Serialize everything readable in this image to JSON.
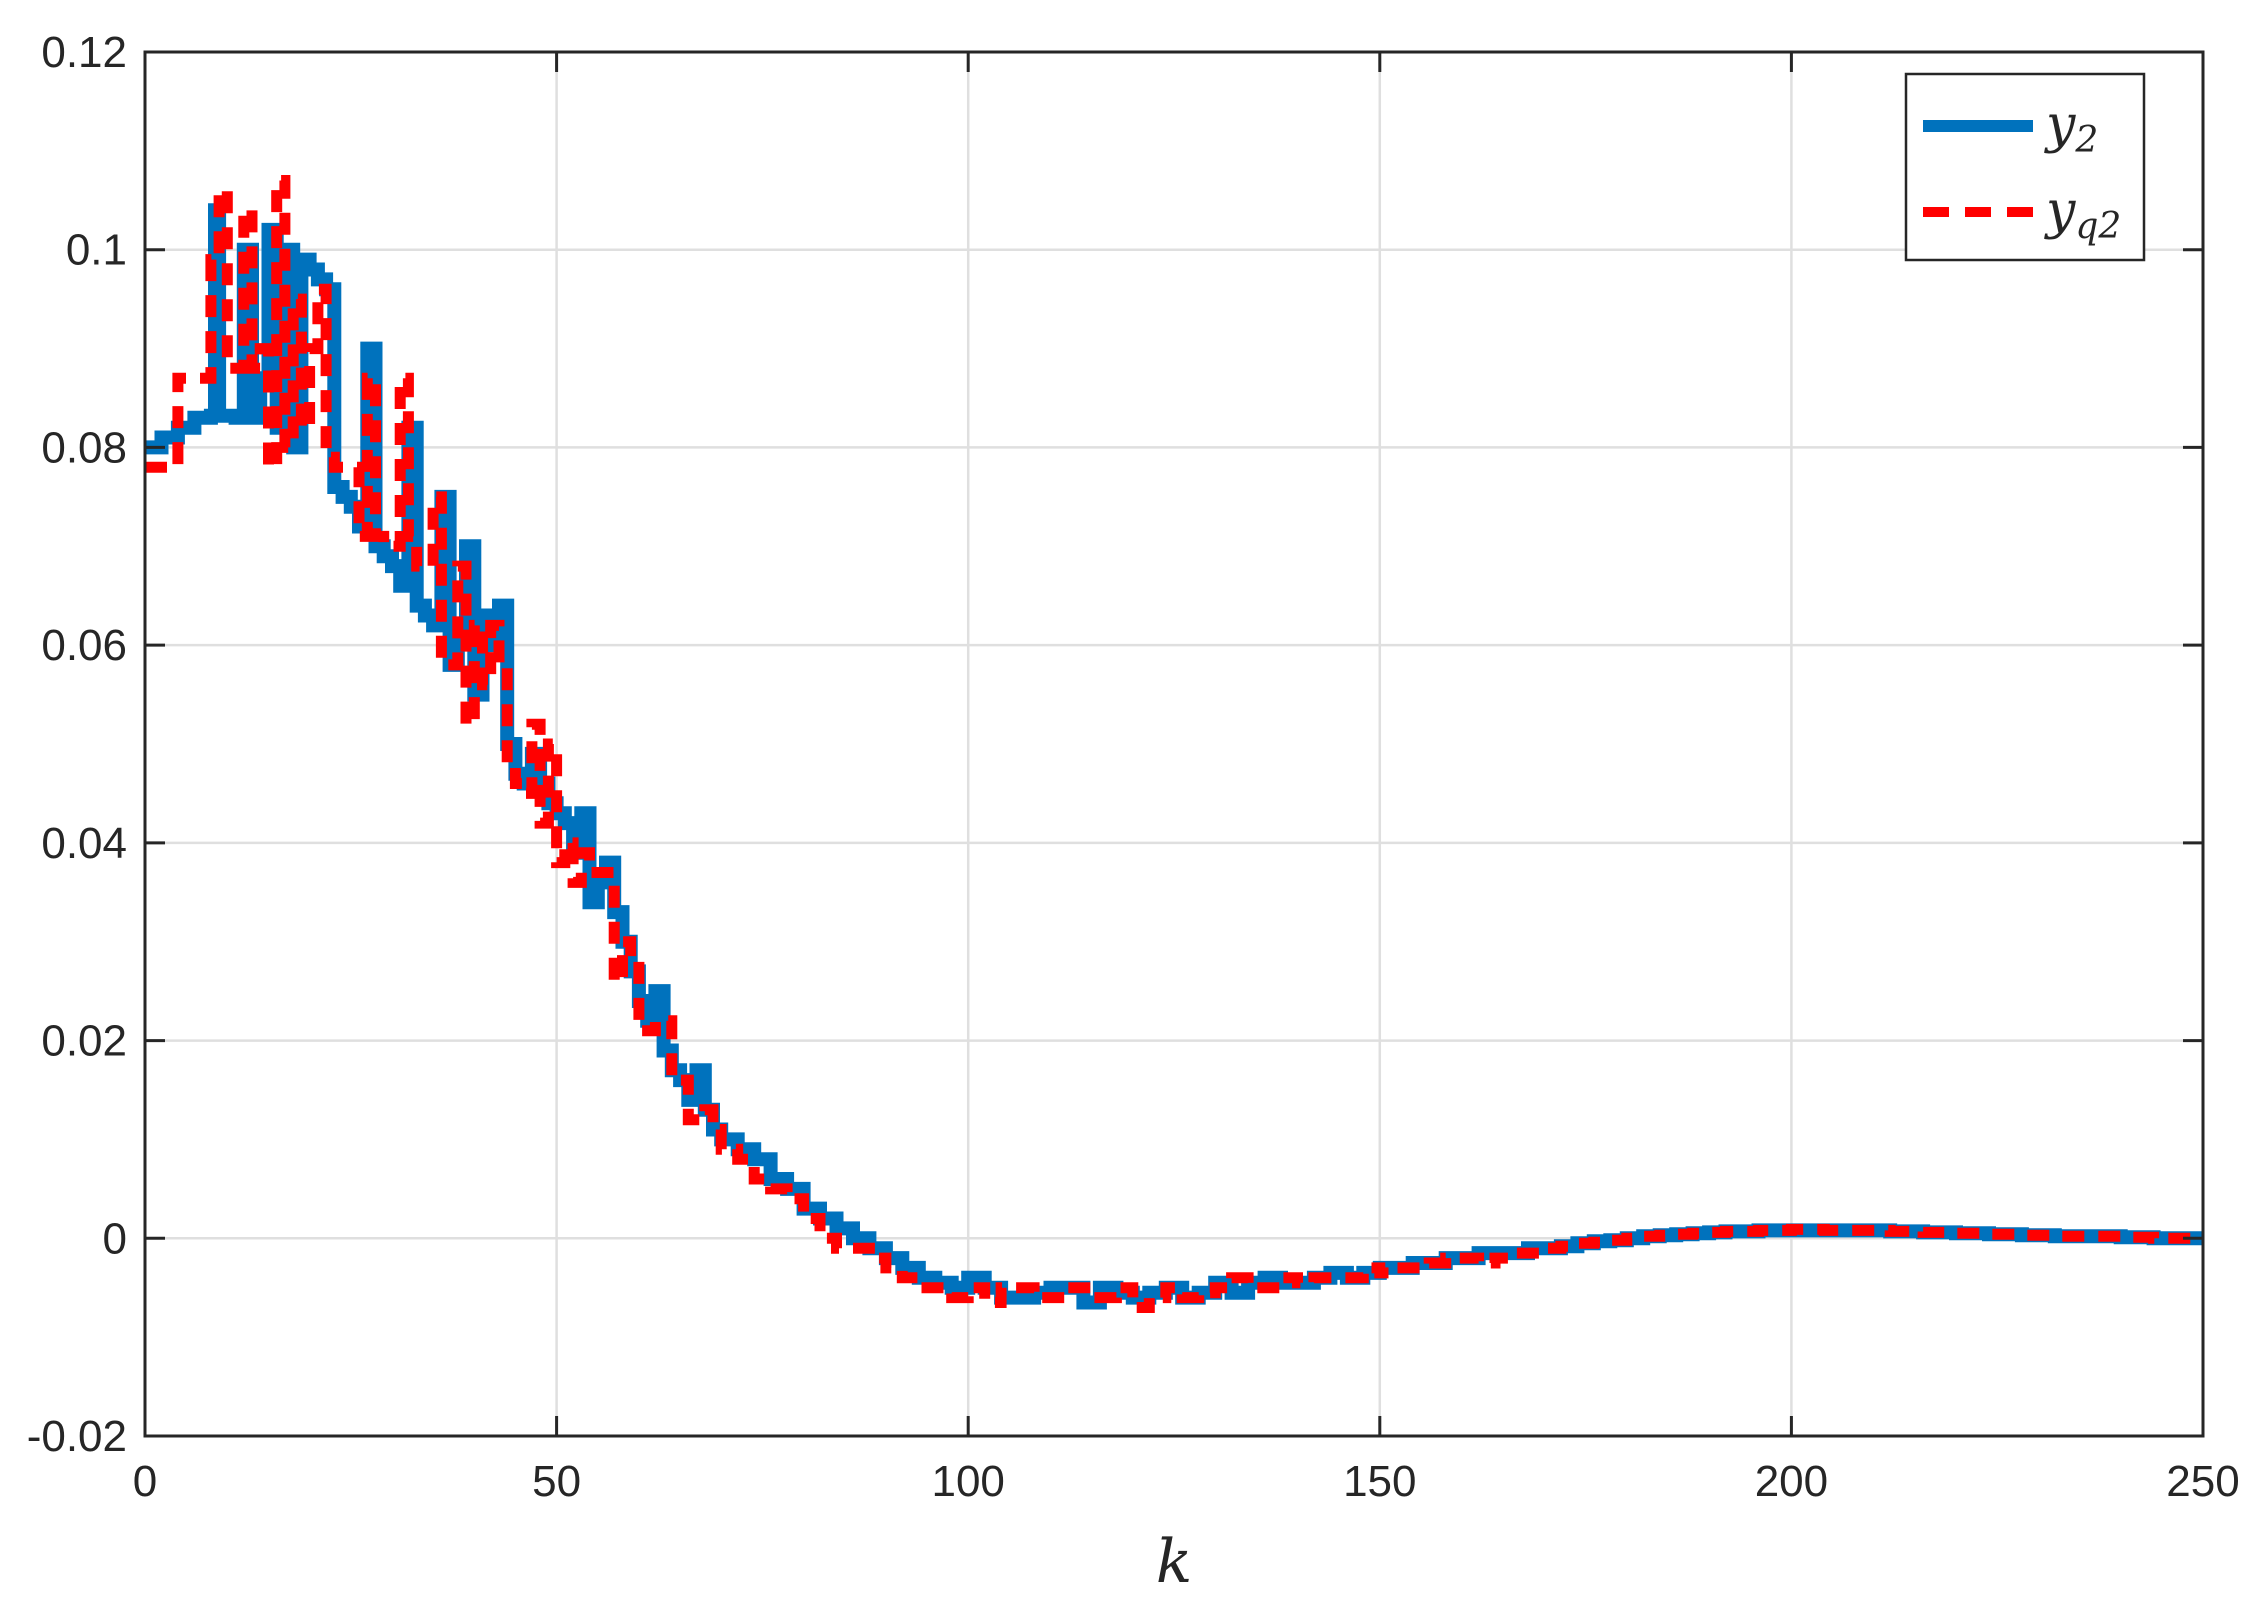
{
  "chart_data": {
    "type": "line",
    "xlabel": "k",
    "ylabel": "",
    "title": "",
    "xlim": [
      0,
      250
    ],
    "ylim": [
      -0.02,
      0.12
    ],
    "xticks": [
      0,
      50,
      100,
      150,
      200,
      250
    ],
    "yticks": [
      -0.02,
      0,
      0.02,
      0.04,
      0.06,
      0.08,
      0.1,
      0.12
    ],
    "xtick_labels": [
      "0",
      "50",
      "100",
      "150",
      "200",
      "250"
    ],
    "ytick_labels": [
      "-0.02",
      "0",
      "0.02",
      "0.04",
      "0.06",
      "0.08",
      "0.1",
      "0.12"
    ],
    "grid": true,
    "legend_position": "top-right",
    "series": [
      {
        "name": "y2",
        "label_base": "y",
        "label_sub": "2",
        "color": "#0072bd",
        "style": "solid",
        "step": true,
        "points": [
          [
            0,
            0.08
          ],
          [
            2,
            0.081
          ],
          [
            4,
            0.082
          ],
          [
            6,
            0.083
          ],
          [
            8,
            0.0832
          ],
          [
            8.5,
            0.104
          ],
          [
            9,
            0.0832
          ],
          [
            11,
            0.083
          ],
          [
            12,
            0.1
          ],
          [
            13,
            0.083
          ],
          [
            14,
            0.087
          ],
          [
            15,
            0.102
          ],
          [
            16,
            0.082
          ],
          [
            17,
            0.1
          ],
          [
            18,
            0.08
          ],
          [
            19,
            0.099
          ],
          [
            20,
            0.098
          ],
          [
            21,
            0.097
          ],
          [
            22,
            0.096
          ],
          [
            23,
            0.076
          ],
          [
            24,
            0.075
          ],
          [
            25,
            0.074
          ],
          [
            26,
            0.072
          ],
          [
            27,
            0.09
          ],
          [
            28,
            0.07
          ],
          [
            29,
            0.069
          ],
          [
            30,
            0.068
          ],
          [
            31,
            0.066
          ],
          [
            32,
            0.082
          ],
          [
            33,
            0.064
          ],
          [
            34,
            0.063
          ],
          [
            35,
            0.062
          ],
          [
            36,
            0.075
          ],
          [
            37,
            0.058
          ],
          [
            38,
            0.061
          ],
          [
            39,
            0.07
          ],
          [
            40,
            0.055
          ],
          [
            41,
            0.063
          ],
          [
            42,
            0.06
          ],
          [
            43,
            0.064
          ],
          [
            44,
            0.05
          ],
          [
            45,
            0.047
          ],
          [
            46,
            0.046
          ],
          [
            47,
            0.049
          ],
          [
            48,
            0.046
          ],
          [
            49,
            0.044
          ],
          [
            50,
            0.043
          ],
          [
            51,
            0.042
          ],
          [
            52,
            0.039
          ],
          [
            53,
            0.043
          ],
          [
            54,
            0.034
          ],
          [
            55,
            0.036
          ],
          [
            56,
            0.038
          ],
          [
            57,
            0.033
          ],
          [
            58,
            0.03
          ],
          [
            59,
            0.027
          ],
          [
            60,
            0.024
          ],
          [
            61,
            0.022
          ],
          [
            62,
            0.025
          ],
          [
            63,
            0.019
          ],
          [
            64,
            0.017
          ],
          [
            65,
            0.016
          ],
          [
            66,
            0.014
          ],
          [
            67,
            0.017
          ],
          [
            68,
            0.013
          ],
          [
            69,
            0.011
          ],
          [
            70,
            0.01
          ],
          [
            72,
            0.009
          ],
          [
            74,
            0.008
          ],
          [
            76,
            0.006
          ],
          [
            78,
            0.005
          ],
          [
            80,
            0.003
          ],
          [
            82,
            0.002
          ],
          [
            84,
            0.001
          ],
          [
            86,
            0.0
          ],
          [
            88,
            -0.001
          ],
          [
            90,
            -0.002
          ],
          [
            92,
            -0.003
          ],
          [
            94,
            -0.004
          ],
          [
            96,
            -0.0045
          ],
          [
            98,
            -0.005
          ],
          [
            100,
            -0.004
          ],
          [
            102,
            -0.005
          ],
          [
            104,
            -0.006
          ],
          [
            106,
            -0.006
          ],
          [
            108,
            -0.0055
          ],
          [
            110,
            -0.005
          ],
          [
            112,
            -0.005
          ],
          [
            114,
            -0.0065
          ],
          [
            116,
            -0.005
          ],
          [
            118,
            -0.0055
          ],
          [
            120,
            -0.006
          ],
          [
            122,
            -0.0055
          ],
          [
            124,
            -0.005
          ],
          [
            126,
            -0.006
          ],
          [
            128,
            -0.0055
          ],
          [
            130,
            -0.0045
          ],
          [
            132,
            -0.0055
          ],
          [
            134,
            -0.0045
          ],
          [
            136,
            -0.004
          ],
          [
            138,
            -0.0045
          ],
          [
            140,
            -0.0045
          ],
          [
            142,
            -0.004
          ],
          [
            144,
            -0.0035
          ],
          [
            146,
            -0.004
          ],
          [
            148,
            -0.0035
          ],
          [
            150,
            -0.003
          ],
          [
            152,
            -0.003
          ],
          [
            154,
            -0.0025
          ],
          [
            156,
            -0.0025
          ],
          [
            158,
            -0.002
          ],
          [
            160,
            -0.002
          ],
          [
            162,
            -0.0015
          ],
          [
            164,
            -0.0015
          ],
          [
            166,
            -0.0015
          ],
          [
            168,
            -0.001
          ],
          [
            170,
            -0.001
          ],
          [
            172,
            -0.0008
          ],
          [
            174,
            -0.0005
          ],
          [
            176,
            -0.0003
          ],
          [
            178,
            -0.0002
          ],
          [
            180,
            0.0
          ],
          [
            182,
            0.0002
          ],
          [
            184,
            0.0003
          ],
          [
            186,
            0.0004
          ],
          [
            188,
            0.0005
          ],
          [
            190,
            0.0006
          ],
          [
            192,
            0.0007
          ],
          [
            194,
            0.0007
          ],
          [
            196,
            0.0008
          ],
          [
            198,
            0.0008
          ],
          [
            200,
            0.0008
          ],
          [
            204,
            0.0008
          ],
          [
            208,
            0.0008
          ],
          [
            212,
            0.0007
          ],
          [
            216,
            0.0006
          ],
          [
            220,
            0.0005
          ],
          [
            224,
            0.0004
          ],
          [
            228,
            0.0003
          ],
          [
            232,
            0.0002
          ],
          [
            236,
            0.0002
          ],
          [
            240,
            0.0001
          ],
          [
            244,
            0.0
          ],
          [
            248,
            0.0
          ],
          [
            250,
            0.0
          ]
        ]
      },
      {
        "name": "yq2",
        "label_base": "y",
        "label_sub": "q2",
        "color": "#ff0000",
        "style": "dashed",
        "step": true,
        "points": [
          [
            0,
            0.078
          ],
          [
            4,
            0.087
          ],
          [
            7,
            0.087
          ],
          [
            8,
            0.099
          ],
          [
            9,
            0.106
          ],
          [
            10,
            0.088
          ],
          [
            11,
            0.088
          ],
          [
            12,
            0.104
          ],
          [
            13,
            0.088
          ],
          [
            14,
            0.09
          ],
          [
            15,
            0.078
          ],
          [
            16,
            0.107
          ],
          [
            17,
            0.08
          ],
          [
            18,
            0.095
          ],
          [
            19,
            0.082
          ],
          [
            20,
            0.09
          ],
          [
            21,
            0.096
          ],
          [
            22,
            0.079
          ],
          [
            23,
            0.078
          ],
          [
            25,
            0.078
          ],
          [
            26,
            0.071
          ],
          [
            27,
            0.087
          ],
          [
            28,
            0.071
          ],
          [
            29,
            0.07
          ],
          [
            31,
            0.087
          ],
          [
            32,
            0.071
          ],
          [
            33,
            0.068
          ],
          [
            35,
            0.075
          ],
          [
            36,
            0.058
          ],
          [
            37,
            0.058
          ],
          [
            38,
            0.068
          ],
          [
            39,
            0.052
          ],
          [
            40,
            0.062
          ],
          [
            41,
            0.056
          ],
          [
            42,
            0.062
          ],
          [
            43,
            0.058
          ],
          [
            44,
            0.048
          ],
          [
            45,
            0.046
          ],
          [
            46,
            0.045
          ],
          [
            47,
            0.052
          ],
          [
            48,
            0.042
          ],
          [
            49,
            0.05
          ],
          [
            50,
            0.038
          ],
          [
            51,
            0.04
          ],
          [
            52,
            0.036
          ],
          [
            53,
            0.039
          ],
          [
            54,
            0.037
          ],
          [
            56,
            0.037
          ],
          [
            57,
            0.026
          ],
          [
            58,
            0.03
          ],
          [
            59,
            0.028
          ],
          [
            60,
            0.021
          ],
          [
            62,
            0.022
          ],
          [
            64,
            0.016
          ],
          [
            66,
            0.012
          ],
          [
            68,
            0.013
          ],
          [
            69,
            0.011
          ],
          [
            70,
            0.009
          ],
          [
            72,
            0.008
          ],
          [
            74,
            0.006
          ],
          [
            76,
            0.005
          ],
          [
            78,
            0.004
          ],
          [
            80,
            0.002
          ],
          [
            82,
            0.0
          ],
          [
            84,
            -0.001
          ],
          [
            86,
            -0.001
          ],
          [
            88,
            -0.002
          ],
          [
            90,
            -0.003
          ],
          [
            92,
            -0.004
          ],
          [
            94,
            -0.005
          ],
          [
            96,
            -0.005
          ],
          [
            98,
            -0.006
          ],
          [
            100,
            -0.005
          ],
          [
            102,
            -0.0065
          ],
          [
            104,
            -0.005
          ],
          [
            106,
            -0.005
          ],
          [
            108,
            -0.006
          ],
          [
            110,
            -0.006
          ],
          [
            112,
            -0.005
          ],
          [
            114,
            -0.005
          ],
          [
            116,
            -0.006
          ],
          [
            118,
            -0.005
          ],
          [
            120,
            -0.007
          ],
          [
            122,
            -0.006
          ],
          [
            124,
            -0.005
          ],
          [
            126,
            -0.006
          ],
          [
            128,
            -0.0055
          ],
          [
            130,
            -0.005
          ],
          [
            132,
            -0.004
          ],
          [
            134,
            -0.005
          ],
          [
            136,
            -0.005
          ],
          [
            138,
            -0.004
          ],
          [
            140,
            -0.0045
          ],
          [
            142,
            -0.004
          ],
          [
            144,
            -0.004
          ],
          [
            146,
            -0.004
          ],
          [
            148,
            -0.003
          ],
          [
            150,
            -0.0035
          ],
          [
            152,
            -0.003
          ],
          [
            154,
            -0.003
          ],
          [
            156,
            -0.0025
          ],
          [
            158,
            -0.002
          ],
          [
            160,
            -0.002
          ],
          [
            162,
            -0.0025
          ],
          [
            164,
            -0.002
          ],
          [
            166,
            -0.0015
          ],
          [
            168,
            -0.0015
          ],
          [
            170,
            -0.001
          ],
          [
            172,
            -0.0008
          ],
          [
            174,
            -0.0005
          ],
          [
            176,
            -0.0004
          ],
          [
            178,
            -0.0002
          ],
          [
            180,
            0.0
          ],
          [
            182,
            0.0002
          ],
          [
            184,
            0.0003
          ],
          [
            186,
            0.0004
          ],
          [
            188,
            0.0005
          ],
          [
            190,
            0.0006
          ],
          [
            192,
            0.0007
          ],
          [
            194,
            0.0007
          ],
          [
            196,
            0.0008
          ],
          [
            198,
            0.0008
          ],
          [
            200,
            0.0009
          ],
          [
            204,
            0.0008
          ],
          [
            208,
            0.0008
          ],
          [
            212,
            0.0007
          ],
          [
            216,
            0.0006
          ],
          [
            220,
            0.0005
          ],
          [
            224,
            0.0004
          ],
          [
            228,
            0.0003
          ],
          [
            232,
            0.0002
          ],
          [
            236,
            0.0002
          ],
          [
            240,
            0.0001
          ],
          [
            244,
            0.0
          ],
          [
            248,
            0.0
          ],
          [
            250,
            0.0
          ]
        ]
      }
    ]
  }
}
